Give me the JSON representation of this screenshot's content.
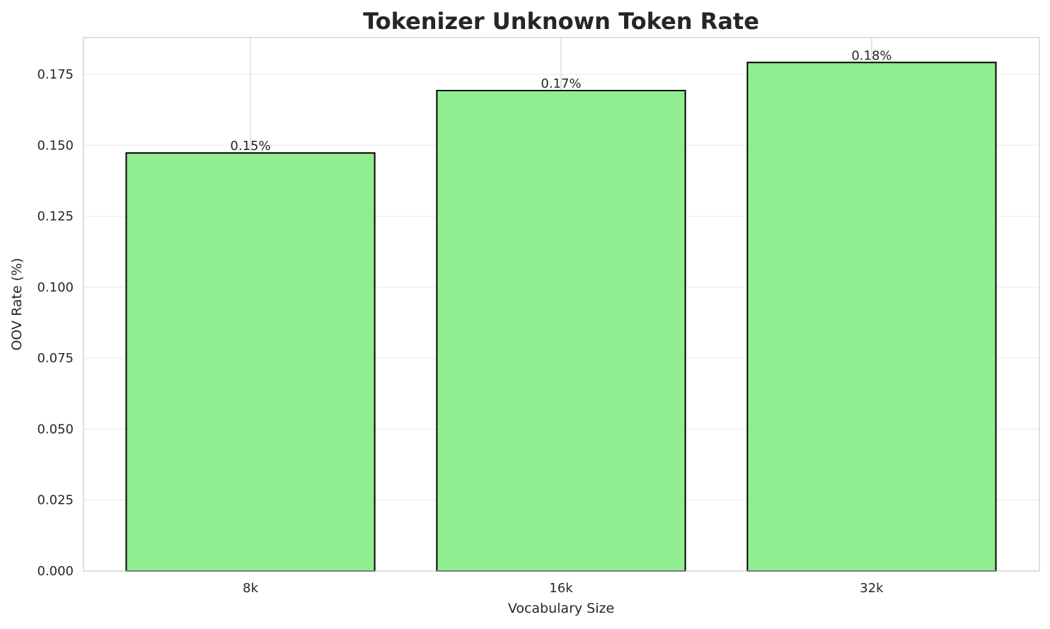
{
  "chart_data": {
    "type": "bar",
    "title": "Tokenizer Unknown Token Rate",
    "xlabel": "Vocabulary Size",
    "ylabel": "OOV Rate (%)",
    "categories": [
      "8k",
      "16k",
      "32k"
    ],
    "values": [
      0.1473,
      0.1693,
      0.1792
    ],
    "data_labels": [
      "0.15%",
      "0.17%",
      "0.18%"
    ],
    "ylim": [
      0,
      0.188
    ],
    "yticks": [
      0,
      0.025,
      0.05,
      0.075,
      0.1,
      0.125,
      0.15,
      0.175
    ],
    "ytick_labels": [
      "0.000",
      "0.025",
      "0.050",
      "0.075",
      "0.100",
      "0.125",
      "0.150",
      "0.175"
    ],
    "grid": true,
    "bar_color": "#90ee90",
    "edge_color": "#000000"
  }
}
